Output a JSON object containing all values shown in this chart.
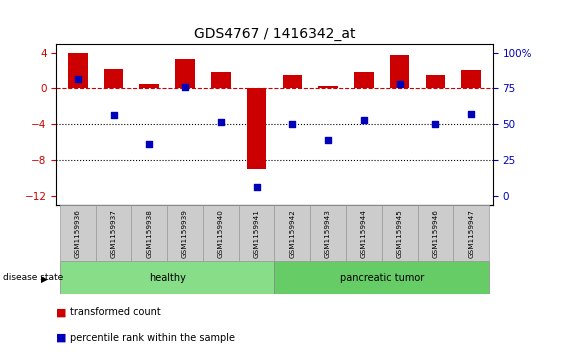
{
  "title": "GDS4767 / 1416342_at",
  "samples": [
    "GSM1159936",
    "GSM1159937",
    "GSM1159938",
    "GSM1159939",
    "GSM1159940",
    "GSM1159941",
    "GSM1159942",
    "GSM1159943",
    "GSM1159944",
    "GSM1159945",
    "GSM1159946",
    "GSM1159947"
  ],
  "red_bars": [
    4.0,
    2.2,
    0.5,
    3.3,
    1.8,
    -9.0,
    1.5,
    0.3,
    1.8,
    3.7,
    1.5,
    2.0
  ],
  "blue_dots_left": [
    1.0,
    -3.0,
    -6.2,
    0.2,
    -3.7,
    -11.0,
    -4.0,
    -5.8,
    -3.5,
    0.5,
    -4.0,
    -2.8
  ],
  "ylim": [
    -13,
    5
  ],
  "yticks_left": [
    4,
    0,
    -4,
    -8,
    -12
  ],
  "yticks_right_vals": [
    "100%",
    "75",
    "50",
    "25",
    "0"
  ],
  "yticks_right_pos": [
    4,
    0,
    -4,
    -8,
    -12
  ],
  "hline_y": 0,
  "dotted_lines": [
    -4,
    -8
  ],
  "bar_color": "#cc0000",
  "dot_color": "#0000bb",
  "bar_width": 0.55,
  "background_color": "#ffffff",
  "tick_label_color_left": "#cc0000",
  "tick_label_color_right": "#0000bb",
  "group_label_x": "disease state",
  "group_ranges": [
    {
      "start": 0,
      "end": 5,
      "label": "healthy",
      "color": "#88dd88"
    },
    {
      "start": 6,
      "end": 11,
      "label": "pancreatic tumor",
      "color": "#66cc66"
    }
  ],
  "legend_items": [
    {
      "color": "#cc0000",
      "label": "transformed count"
    },
    {
      "color": "#0000bb",
      "label": "percentile rank within the sample"
    }
  ],
  "box_color": "#cccccc"
}
